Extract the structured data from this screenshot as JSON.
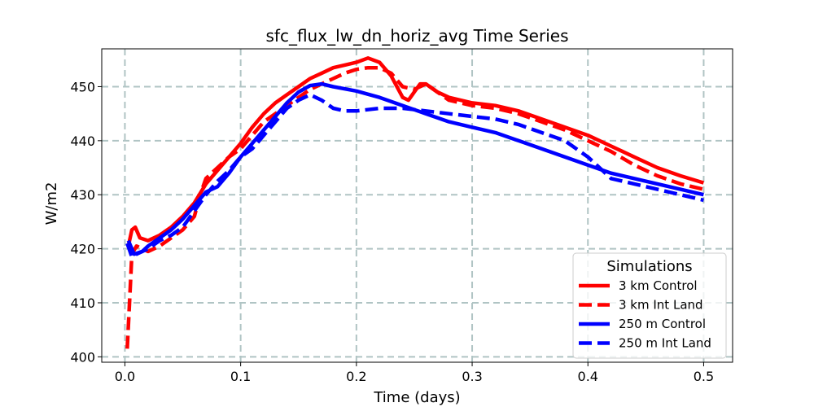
{
  "chart_data": {
    "type": "line",
    "title": "sfc_flux_lw_dn_horiz_avg Time Series",
    "xlabel": "Time (days)",
    "ylabel": "W/m2",
    "xlim": [
      -0.02,
      0.525
    ],
    "ylim": [
      399,
      457
    ],
    "xticks": [
      0.0,
      0.1,
      0.2,
      0.3,
      0.4,
      0.5
    ],
    "xtick_labels": [
      "0.0",
      "0.1",
      "0.2",
      "0.3",
      "0.4",
      "0.5"
    ],
    "yticks": [
      400,
      410,
      420,
      430,
      440,
      450
    ],
    "ytick_labels": [
      "400",
      "410",
      "420",
      "430",
      "440",
      "450"
    ],
    "grid": true,
    "legend": {
      "title": "Simulations",
      "placement": "lower right"
    },
    "series": [
      {
        "name": "3 km Control",
        "color": "#ff0000",
        "style": "solid",
        "points": [
          [
            0.003,
            420.5
          ],
          [
            0.006,
            423.5
          ],
          [
            0.009,
            424
          ],
          [
            0.013,
            422
          ],
          [
            0.02,
            421.5
          ],
          [
            0.03,
            422.5
          ],
          [
            0.04,
            424
          ],
          [
            0.05,
            426
          ],
          [
            0.06,
            428.5
          ],
          [
            0.07,
            432
          ],
          [
            0.08,
            434.5
          ],
          [
            0.09,
            437
          ],
          [
            0.1,
            439.5
          ],
          [
            0.11,
            442.5
          ],
          [
            0.12,
            445
          ],
          [
            0.13,
            447
          ],
          [
            0.14,
            448.5
          ],
          [
            0.15,
            450
          ],
          [
            0.16,
            451.5
          ],
          [
            0.17,
            452.5
          ],
          [
            0.18,
            453.5
          ],
          [
            0.19,
            454
          ],
          [
            0.2,
            454.5
          ],
          [
            0.21,
            455.3
          ],
          [
            0.22,
            454.5
          ],
          [
            0.23,
            452
          ],
          [
            0.24,
            448
          ],
          [
            0.245,
            447.5
          ],
          [
            0.25,
            449
          ],
          [
            0.255,
            450.5
          ],
          [
            0.26,
            450.5
          ],
          [
            0.27,
            449
          ],
          [
            0.28,
            448
          ],
          [
            0.3,
            447
          ],
          [
            0.32,
            446.5
          ],
          [
            0.34,
            445.5
          ],
          [
            0.36,
            444
          ],
          [
            0.38,
            442.5
          ],
          [
            0.4,
            441
          ],
          [
            0.42,
            439
          ],
          [
            0.44,
            437
          ],
          [
            0.46,
            435
          ],
          [
            0.48,
            433.5
          ],
          [
            0.5,
            432.2
          ]
        ]
      },
      {
        "name": "3 km Int Land",
        "color": "#ff0000",
        "style": "dashed",
        "points": [
          [
            0.002,
            401.5
          ],
          [
            0.004,
            410
          ],
          [
            0.006,
            419
          ],
          [
            0.01,
            420.5
          ],
          [
            0.015,
            420
          ],
          [
            0.02,
            419.5
          ],
          [
            0.03,
            420.5
          ],
          [
            0.04,
            422
          ],
          [
            0.05,
            423.5
          ],
          [
            0.06,
            426
          ],
          [
            0.065,
            430
          ],
          [
            0.07,
            433
          ],
          [
            0.08,
            435
          ],
          [
            0.09,
            437
          ],
          [
            0.1,
            438.5
          ],
          [
            0.11,
            441
          ],
          [
            0.12,
            443.5
          ],
          [
            0.13,
            445
          ],
          [
            0.14,
            446.5
          ],
          [
            0.15,
            448
          ],
          [
            0.16,
            449.5
          ],
          [
            0.17,
            450.5
          ],
          [
            0.18,
            451.5
          ],
          [
            0.19,
            452.5
          ],
          [
            0.2,
            453.2
          ],
          [
            0.21,
            453.5
          ],
          [
            0.22,
            453.5
          ],
          [
            0.23,
            452.5
          ],
          [
            0.24,
            450
          ],
          [
            0.25,
            449.5
          ],
          [
            0.26,
            450.5
          ],
          [
            0.27,
            449
          ],
          [
            0.28,
            447.5
          ],
          [
            0.3,
            446.5
          ],
          [
            0.32,
            446
          ],
          [
            0.34,
            445
          ],
          [
            0.36,
            443.5
          ],
          [
            0.38,
            442
          ],
          [
            0.4,
            440
          ],
          [
            0.42,
            438
          ],
          [
            0.44,
            435.5
          ],
          [
            0.46,
            433.5
          ],
          [
            0.48,
            432
          ],
          [
            0.5,
            431
          ]
        ]
      },
      {
        "name": "250 m Control",
        "color": "#0000ff",
        "style": "solid",
        "points": [
          [
            0.003,
            421.5
          ],
          [
            0.008,
            419
          ],
          [
            0.015,
            419.5
          ],
          [
            0.02,
            420.5
          ],
          [
            0.03,
            422
          ],
          [
            0.04,
            423.5
          ],
          [
            0.05,
            425.5
          ],
          [
            0.06,
            428
          ],
          [
            0.07,
            430.5
          ],
          [
            0.08,
            431.5
          ],
          [
            0.09,
            434
          ],
          [
            0.1,
            437
          ],
          [
            0.11,
            439.5
          ],
          [
            0.12,
            442
          ],
          [
            0.13,
            444.5
          ],
          [
            0.14,
            447
          ],
          [
            0.15,
            449
          ],
          [
            0.16,
            450.2
          ],
          [
            0.17,
            450.5
          ],
          [
            0.18,
            450
          ],
          [
            0.2,
            449.2
          ],
          [
            0.22,
            448
          ],
          [
            0.24,
            446.5
          ],
          [
            0.26,
            445
          ],
          [
            0.28,
            443.5
          ],
          [
            0.3,
            442.5
          ],
          [
            0.32,
            441.5
          ],
          [
            0.34,
            440
          ],
          [
            0.36,
            438.5
          ],
          [
            0.38,
            437
          ],
          [
            0.4,
            435.5
          ],
          [
            0.42,
            434
          ],
          [
            0.44,
            433
          ],
          [
            0.46,
            432
          ],
          [
            0.48,
            431
          ],
          [
            0.5,
            430
          ]
        ]
      },
      {
        "name": "250 m Int Land",
        "color": "#0000ff",
        "style": "dashed",
        "points": [
          [
            0.002,
            421
          ],
          [
            0.006,
            418.5
          ],
          [
            0.01,
            419
          ],
          [
            0.02,
            420
          ],
          [
            0.03,
            421.5
          ],
          [
            0.04,
            422.5
          ],
          [
            0.05,
            424
          ],
          [
            0.06,
            427
          ],
          [
            0.07,
            430
          ],
          [
            0.08,
            432.5
          ],
          [
            0.09,
            434.5
          ],
          [
            0.1,
            437
          ],
          [
            0.11,
            438.5
          ],
          [
            0.12,
            441
          ],
          [
            0.13,
            443.5
          ],
          [
            0.14,
            446
          ],
          [
            0.15,
            447.5
          ],
          [
            0.16,
            448.5
          ],
          [
            0.17,
            447.5
          ],
          [
            0.18,
            446
          ],
          [
            0.19,
            445.5
          ],
          [
            0.2,
            445.5
          ],
          [
            0.22,
            446
          ],
          [
            0.24,
            446
          ],
          [
            0.26,
            445.5
          ],
          [
            0.28,
            445
          ],
          [
            0.3,
            444.5
          ],
          [
            0.32,
            444
          ],
          [
            0.34,
            443
          ],
          [
            0.36,
            441.5
          ],
          [
            0.38,
            440
          ],
          [
            0.4,
            437
          ],
          [
            0.41,
            435
          ],
          [
            0.42,
            433
          ],
          [
            0.44,
            432
          ],
          [
            0.46,
            431
          ],
          [
            0.48,
            430
          ],
          [
            0.5,
            429
          ]
        ]
      }
    ]
  }
}
